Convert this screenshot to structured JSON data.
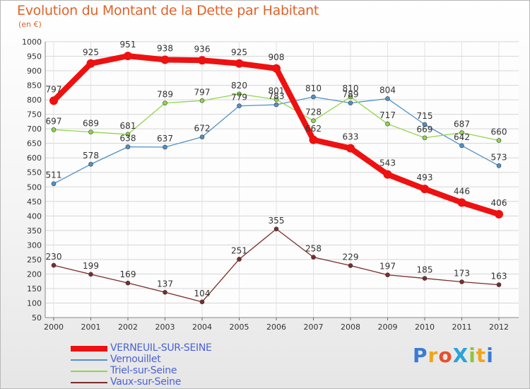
{
  "title": "Evolution du Montant de la Dette par Habitant",
  "subtitle": "(en €)",
  "logo": {
    "text": "ProXiti",
    "letters": [
      {
        "c": "P",
        "color": "#3a7bd5"
      },
      {
        "c": "r",
        "color": "#f2a51a"
      },
      {
        "c": "o",
        "color": "#e94e2c"
      },
      {
        "c": "X",
        "color": "#2aa3d8"
      },
      {
        "c": "i",
        "color": "#8cc63e"
      },
      {
        "c": "t",
        "color": "#f2a51a"
      },
      {
        "c": "i",
        "color": "#3a7bd5"
      }
    ]
  },
  "chart_data": {
    "type": "line",
    "x": [
      "2000",
      "2001",
      "2002",
      "2003",
      "2004",
      "2005",
      "2006",
      "2007",
      "2008",
      "2009",
      "2010",
      "2011",
      "2012"
    ],
    "ylim": [
      50,
      1000
    ],
    "yticks": [
      50,
      100,
      150,
      200,
      250,
      300,
      350,
      400,
      450,
      500,
      550,
      600,
      650,
      700,
      750,
      800,
      850,
      900,
      950,
      1000
    ],
    "grid": true,
    "legend_position": "bottom-left",
    "series": [
      {
        "name": "VERNEUIL-SUR-SEINE",
        "color": "#ee1111",
        "values": [
          797,
          925,
          951,
          938,
          936,
          925,
          908,
          662,
          633,
          543,
          493,
          446,
          406
        ]
      },
      {
        "name": "Vernouillet",
        "color": "#4f92c8",
        "values": [
          511,
          578,
          638,
          637,
          672,
          779,
          783,
          810,
          789,
          804,
          715,
          642,
          573
        ]
      },
      {
        "name": "Triel-sur-Seine",
        "color": "#8fd64a",
        "values": [
          697,
          689,
          681,
          789,
          797,
          820,
          801,
          728,
          810,
          717,
          669,
          687,
          660
        ]
      },
      {
        "name": "Vaux-sur-Seine",
        "color": "#7a2c2c",
        "values": [
          230,
          199,
          169,
          137,
          104,
          251,
          355,
          258,
          229,
          197,
          185,
          173,
          163
        ]
      }
    ]
  }
}
